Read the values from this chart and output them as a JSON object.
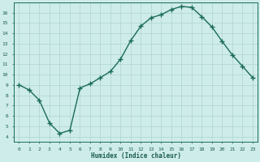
{
  "x": [
    0,
    1,
    2,
    3,
    4,
    5,
    6,
    7,
    8,
    9,
    10,
    11,
    12,
    13,
    14,
    15,
    16,
    17,
    18,
    19,
    20,
    21,
    22,
    23
  ],
  "y": [
    9.0,
    8.5,
    7.5,
    5.3,
    4.3,
    4.6,
    8.7,
    9.1,
    9.7,
    10.3,
    11.5,
    13.3,
    14.7,
    15.5,
    15.8,
    16.3,
    16.6,
    16.5,
    15.6,
    14.6,
    13.2,
    11.9,
    10.8,
    9.7
  ],
  "xlabel": "Humidex (Indice chaleur)",
  "ylabel": "",
  "xlim": [
    -0.5,
    23.5
  ],
  "ylim": [
    3.5,
    17.0
  ],
  "yticks": [
    4,
    5,
    6,
    7,
    8,
    9,
    10,
    11,
    12,
    13,
    14,
    15,
    16
  ],
  "xticks": [
    0,
    1,
    2,
    3,
    4,
    5,
    6,
    7,
    8,
    9,
    10,
    11,
    12,
    13,
    14,
    15,
    16,
    17,
    18,
    19,
    20,
    21,
    22,
    23
  ],
  "line_color": "#1a6b5a",
  "bg_color": "#ceecea",
  "grid_color": "#aed4d0",
  "font_color": "#1a5c4e",
  "marker": "+",
  "linewidth": 1.0,
  "markersize": 4
}
